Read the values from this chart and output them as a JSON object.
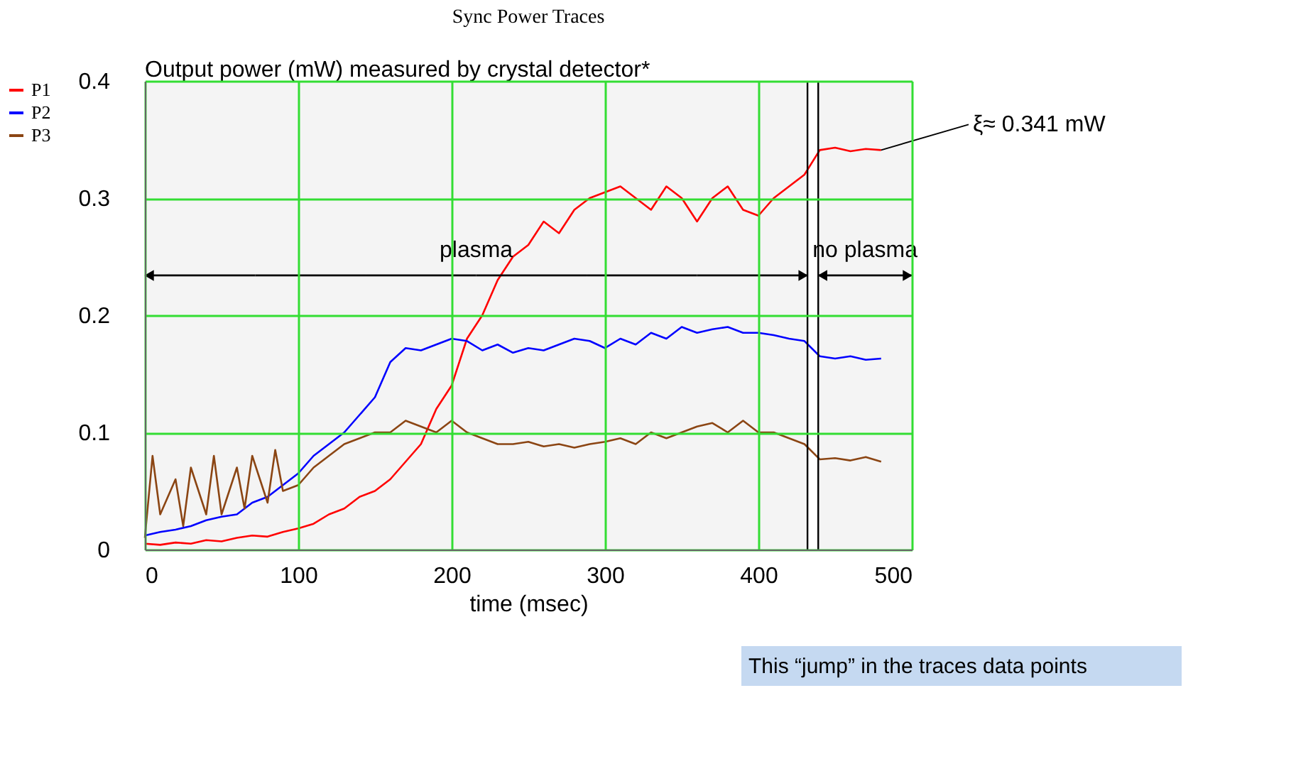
{
  "chart_data": {
    "type": "line",
    "title": "Sync Power Traces",
    "xlabel": "time (msec)",
    "x": [
      0,
      10,
      20,
      30,
      40,
      50,
      60,
      70,
      80,
      90,
      100,
      110,
      120,
      130,
      140,
      150,
      160,
      170,
      180,
      190,
      200,
      210,
      220,
      230,
      240,
      250,
      260,
      270,
      280,
      290,
      300,
      310,
      320,
      330,
      340,
      350,
      360,
      370,
      380,
      390,
      400,
      410,
      420,
      430,
      440,
      450,
      460,
      470,
      480
    ],
    "series": [
      {
        "name": "P1",
        "color": "#ff0000",
        "values": [
          0.005,
          0.004,
          0.006,
          0.005,
          0.008,
          0.007,
          0.01,
          0.012,
          0.011,
          0.015,
          0.018,
          0.022,
          0.03,
          0.035,
          0.045,
          0.05,
          0.06,
          0.075,
          0.09,
          0.12,
          0.14,
          0.18,
          0.2,
          0.23,
          0.25,
          0.26,
          0.28,
          0.27,
          0.29,
          0.3,
          0.305,
          0.31,
          0.3,
          0.29,
          0.31,
          0.3,
          0.28,
          0.3,
          0.31,
          0.29,
          0.285,
          0.3,
          0.31,
          0.32,
          0.341,
          0.343,
          0.34,
          0.342,
          0.341
        ]
      },
      {
        "name": "P2",
        "color": "#0000ff",
        "values": [
          0.012,
          0.015,
          0.017,
          0.02,
          0.025,
          0.028,
          0.03,
          0.04,
          0.045,
          0.055,
          0.065,
          0.08,
          0.09,
          0.1,
          0.115,
          0.13,
          0.16,
          0.172,
          0.17,
          0.175,
          0.18,
          0.178,
          0.17,
          0.175,
          0.168,
          0.172,
          0.17,
          0.175,
          0.18,
          0.178,
          0.172,
          0.18,
          0.175,
          0.185,
          0.18,
          0.19,
          0.185,
          0.188,
          0.19,
          0.185,
          0.185,
          0.183,
          0.18,
          0.178,
          0.165,
          0.163,
          0.165,
          0.162,
          0.163
        ]
      },
      {
        "name": "P3",
        "color": "#8b4513",
        "x": [
          0,
          5,
          10,
          20,
          25,
          30,
          40,
          45,
          50,
          60,
          65,
          70,
          80,
          85,
          90,
          100,
          110,
          120,
          130,
          140,
          150,
          160,
          170,
          180,
          190,
          200,
          210,
          220,
          230,
          240,
          250,
          260,
          270,
          280,
          290,
          300,
          310,
          320,
          330,
          340,
          350,
          360,
          370,
          380,
          390,
          400,
          410,
          420,
          430,
          440,
          450,
          460,
          470,
          480
        ],
        "values": [
          0.01,
          0.08,
          0.03,
          0.06,
          0.02,
          0.07,
          0.03,
          0.08,
          0.03,
          0.07,
          0.035,
          0.08,
          0.04,
          0.085,
          0.05,
          0.055,
          0.07,
          0.08,
          0.09,
          0.095,
          0.1,
          0.1,
          0.11,
          0.105,
          0.1,
          0.11,
          0.1,
          0.095,
          0.09,
          0.09,
          0.092,
          0.088,
          0.09,
          0.087,
          0.09,
          0.092,
          0.095,
          0.09,
          0.1,
          0.095,
          0.1,
          0.105,
          0.108,
          0.1,
          0.11,
          0.1,
          0.1,
          0.095,
          0.09,
          0.077,
          0.078,
          0.076,
          0.079,
          0.075
        ]
      }
    ],
    "xlim": [
      0,
      500
    ],
    "ylim": [
      0,
      0.4
    ],
    "xticks": [
      0,
      100,
      200,
      300,
      400,
      500
    ],
    "yticks": [
      0,
      0.1,
      0.2,
      0.3,
      0.4
    ],
    "grid": true,
    "legend": "left",
    "line_style": "solid",
    "ref_lines": [
      {
        "axis": "x",
        "value": 432,
        "color": "#000000"
      },
      {
        "axis": "x",
        "value": 439,
        "color": "#000000"
      }
    ],
    "bands": [
      {
        "axis": "x",
        "from": 0,
        "to": 432,
        "label": "plasma",
        "color": "#f4f4f4"
      },
      {
        "axis": "x",
        "from": 439,
        "to": 500,
        "label": "no plasma",
        "color": "#f4f4f4"
      }
    ],
    "annotations": [
      "Output power (mW) measured by crystal detector*",
      {
        "text": "ξ≈ 0.341 mW",
        "x": 480,
        "y": 0.341
      },
      "This “jump” in the traces data points"
    ]
  }
}
